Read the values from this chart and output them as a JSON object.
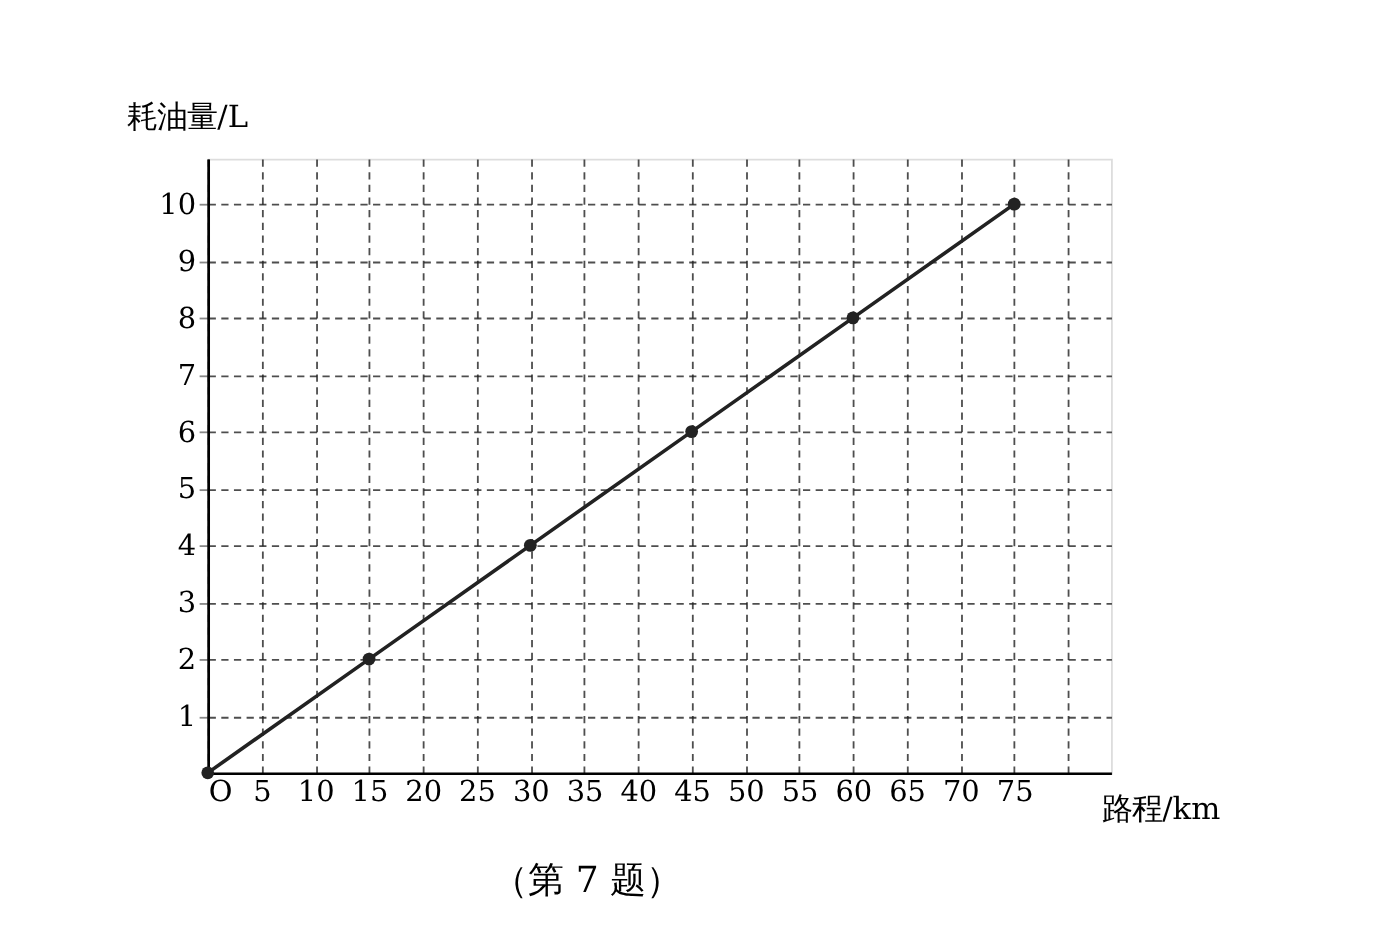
{
  "chart_data": {
    "type": "line",
    "xlabel": "路程/km",
    "ylabel": "耗油量/L",
    "series": [
      {
        "x": [
          0,
          15,
          30,
          45,
          60,
          75
        ],
        "values": [
          0,
          2,
          4,
          6,
          8,
          10
        ],
        "color": "#222222"
      }
    ],
    "xlim": [
      0,
      84
    ],
    "ylim": [
      0,
      10.8
    ],
    "xticks": [
      {
        "value": 0,
        "label": "O"
      },
      5,
      10,
      15,
      20,
      25,
      30,
      35,
      40,
      45,
      50,
      55,
      60,
      65,
      70,
      75,
      {
        "value": 80,
        "label": null
      }
    ],
    "yticks": [
      1,
      2,
      3,
      4,
      5,
      6,
      7,
      8,
      9,
      10
    ],
    "grid": true,
    "marker": "circle",
    "annotations": [
      "（第 7 题）"
    ]
  }
}
